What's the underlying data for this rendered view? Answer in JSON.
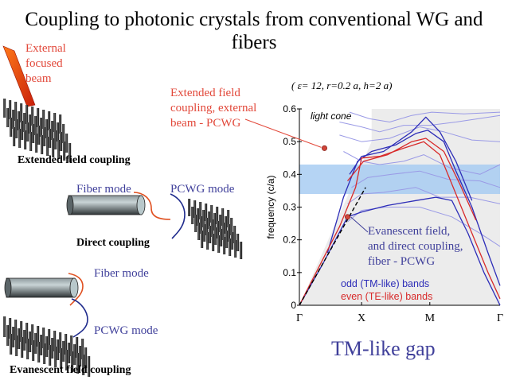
{
  "title": "Coupling to photonic crystals from conventional WG and fibers",
  "left_panel": {
    "external_beam_label": [
      "External",
      "focused",
      "beam"
    ],
    "extended_caption": "Extended field coupling",
    "direct": {
      "fiber_mode_label": "Fiber mode",
      "pcwg_mode_label": "PCWG mode",
      "caption": "Direct coupling"
    },
    "evanescent": {
      "fiber_mode_label": "Fiber mode",
      "pcwg_mode_label": "PCWG mode",
      "caption": "Evanescent field coupling"
    }
  },
  "annotations": {
    "extended_field": [
      "Extended field",
      "coupling, external",
      "beam - PCWG"
    ],
    "evanescent_field": [
      "Evanescent field,",
      "and direct coupling,",
      "fiber - PCWG"
    ],
    "params": "( ε= 12, r=0.2  a, h=2  a)",
    "gap_label": "TM-like gap"
  },
  "chart_data": {
    "type": "line",
    "title": "",
    "xlabel": "",
    "ylabel": "frequency (c/a)",
    "ylim": [
      0,
      0.6
    ],
    "yticks": [
      "0",
      "0.1",
      "0.2",
      "0.3",
      "0.4",
      "0.5",
      "0.6"
    ],
    "x_tick_labels": [
      "Γ",
      "X",
      "M",
      "Γ"
    ],
    "light_cone_label": "light cone",
    "gap_band": [
      0.34,
      0.43
    ],
    "legend": [
      "odd (TM-like) bands",
      "even (TE-like) bands"
    ],
    "colors": {
      "odd": "#2d2db8",
      "even": "#d82a2a",
      "faint": "#9a9ae6",
      "gap": "#a8cdf2",
      "light_cone": "#ececec",
      "marker": "#d0453a",
      "annotation_red": "#e2483a",
      "annotation_blue": "#3f3f9a"
    }
  }
}
